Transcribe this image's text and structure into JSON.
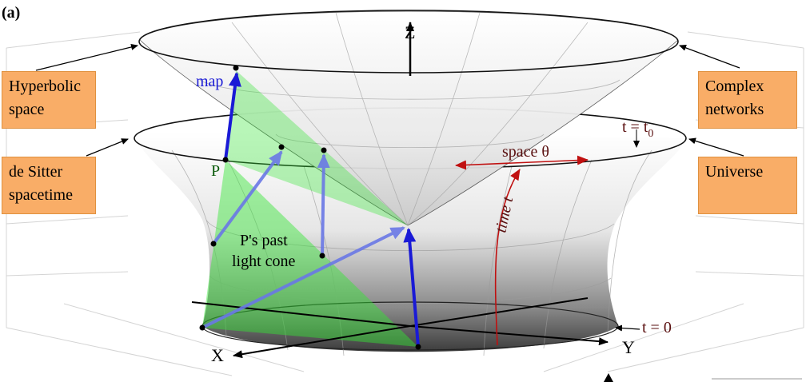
{
  "panel_label": "(a)",
  "boxes": {
    "hyperbolic": [
      "Hyperbolic",
      "space"
    ],
    "desitter": [
      "de Sitter",
      "spacetime"
    ],
    "complex": [
      "Complex",
      "networks"
    ],
    "universe": [
      "Universe"
    ]
  },
  "labels": {
    "z_axis": "Z",
    "x_axis": "X",
    "y_axis": "Y",
    "map": "map",
    "point_p": "P",
    "past_cone_line1": "P's past",
    "past_cone_line2": "light cone",
    "space_theta": "space θ",
    "time_t": "time t",
    "t_equals": "t = t",
    "t_sub": "0",
    "t_zero": "t = 0"
  },
  "colors": {
    "map_arrow": "#1a1ad6",
    "projection_arrow": "#6a78e6",
    "light_cone": "#33e633",
    "space_time_arrow": "#c01010",
    "label_dark_red": "#5a1010",
    "box_fill": "#f9ad67"
  },
  "icons": [
    "pointer-arrow-icon"
  ]
}
